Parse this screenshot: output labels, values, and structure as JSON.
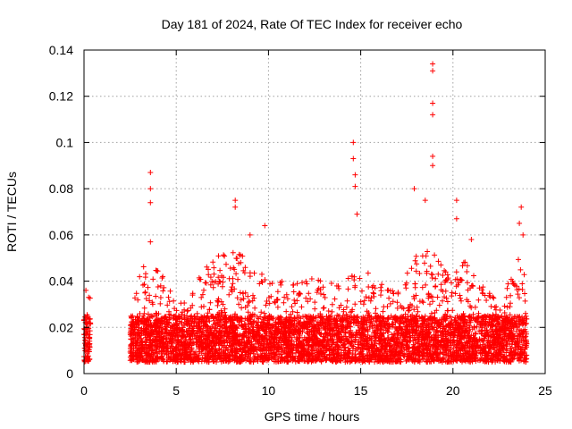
{
  "chart_data": {
    "type": "scatter",
    "title": "Day 181 of 2024, Rate Of TEC Index for receiver echo",
    "xlabel": "GPS time / hours",
    "ylabel": "ROTI / TECUs",
    "xlim": [
      0,
      25
    ],
    "ylim": [
      0,
      0.14
    ],
    "x_ticks": [
      0,
      5,
      10,
      15,
      20,
      25
    ],
    "x_tick_labels": [
      "0",
      "5",
      "10",
      "15",
      "20",
      "25"
    ],
    "y_ticks": [
      0,
      0.02,
      0.04,
      0.06,
      0.08,
      0.1,
      0.12,
      0.14
    ],
    "y_tick_labels": [
      "0",
      "0.02",
      "0.04",
      "0.06",
      "0.08",
      "0.1",
      "0.12",
      "0.14"
    ],
    "grid": true,
    "marker": "plus",
    "color": "#ff0000",
    "coverage_segments": [
      {
        "start_hour": 0.0,
        "end_hour": 0.35
      },
      {
        "start_hour": 2.5,
        "end_hour": 24.0
      }
    ],
    "baseline_band": {
      "min": 0.005,
      "max": 0.025
    },
    "activity_envelope": [
      {
        "x": 0.0,
        "y": 0.025
      },
      {
        "x": 0.35,
        "y": 0.036
      },
      {
        "x": 2.5,
        "y": 0.02
      },
      {
        "x": 3.0,
        "y": 0.045
      },
      {
        "x": 3.6,
        "y": 0.055
      },
      {
        "x": 4.2,
        "y": 0.045
      },
      {
        "x": 5.0,
        "y": 0.03
      },
      {
        "x": 6.0,
        "y": 0.04
      },
      {
        "x": 7.0,
        "y": 0.05
      },
      {
        "x": 8.0,
        "y": 0.055
      },
      {
        "x": 9.0,
        "y": 0.05
      },
      {
        "x": 10.0,
        "y": 0.045
      },
      {
        "x": 11.0,
        "y": 0.038
      },
      {
        "x": 12.0,
        "y": 0.042
      },
      {
        "x": 13.0,
        "y": 0.04
      },
      {
        "x": 14.0,
        "y": 0.038
      },
      {
        "x": 15.0,
        "y": 0.05
      },
      {
        "x": 16.0,
        "y": 0.04
      },
      {
        "x": 17.0,
        "y": 0.038
      },
      {
        "x": 17.5,
        "y": 0.05
      },
      {
        "x": 18.5,
        "y": 0.06
      },
      {
        "x": 19.5,
        "y": 0.045
      },
      {
        "x": 20.5,
        "y": 0.05
      },
      {
        "x": 21.5,
        "y": 0.04
      },
      {
        "x": 22.5,
        "y": 0.03
      },
      {
        "x": 23.5,
        "y": 0.05
      },
      {
        "x": 24.0,
        "y": 0.045
      }
    ],
    "spikes": [
      {
        "x": 0.1,
        "y": 0.036
      },
      {
        "x": 0.25,
        "y": 0.033
      },
      {
        "x": 3.6,
        "y": 0.087
      },
      {
        "x": 3.6,
        "y": 0.08
      },
      {
        "x": 3.6,
        "y": 0.074
      },
      {
        "x": 3.6,
        "y": 0.057
      },
      {
        "x": 8.2,
        "y": 0.075
      },
      {
        "x": 8.2,
        "y": 0.072
      },
      {
        "x": 9.8,
        "y": 0.064
      },
      {
        "x": 9.0,
        "y": 0.06
      },
      {
        "x": 14.6,
        "y": 0.1
      },
      {
        "x": 14.6,
        "y": 0.093
      },
      {
        "x": 14.7,
        "y": 0.086
      },
      {
        "x": 14.7,
        "y": 0.081
      },
      {
        "x": 14.8,
        "y": 0.069
      },
      {
        "x": 17.9,
        "y": 0.08
      },
      {
        "x": 18.5,
        "y": 0.075
      },
      {
        "x": 18.9,
        "y": 0.134
      },
      {
        "x": 18.9,
        "y": 0.131
      },
      {
        "x": 18.9,
        "y": 0.117
      },
      {
        "x": 18.9,
        "y": 0.112
      },
      {
        "x": 18.9,
        "y": 0.094
      },
      {
        "x": 18.9,
        "y": 0.09
      },
      {
        "x": 20.2,
        "y": 0.075
      },
      {
        "x": 20.2,
        "y": 0.067
      },
      {
        "x": 21.0,
        "y": 0.058
      },
      {
        "x": 23.7,
        "y": 0.072
      },
      {
        "x": 23.6,
        "y": 0.065
      },
      {
        "x": 23.8,
        "y": 0.06
      }
    ]
  }
}
